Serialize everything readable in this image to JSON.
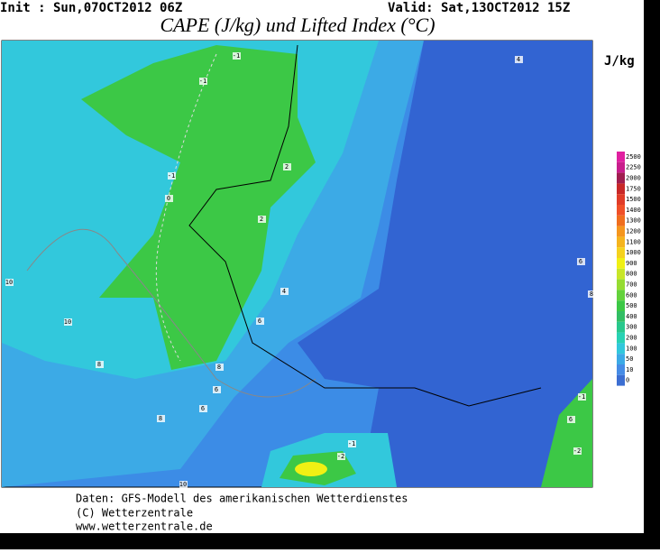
{
  "header": {
    "init": "Init : Sun,07OCT2012 06Z",
    "valid": "Valid: Sat,13OCT2012 15Z",
    "title": "CAPE (J/kg) und Lifted Index (°C)"
  },
  "colorbar": {
    "unit": "J/kg",
    "levels": [
      2500,
      2250,
      2000,
      1750,
      1500,
      1400,
      1300,
      1200,
      1100,
      1000,
      900,
      800,
      700,
      600,
      500,
      400,
      300,
      200,
      100,
      50,
      10,
      0
    ],
    "colors": [
      "#e020a0",
      "#c81e8c",
      "#a01e50",
      "#c82828",
      "#e03c28",
      "#f05028",
      "#f06e1e",
      "#f5961e",
      "#f5b41e",
      "#f5d21e",
      "#f0f014",
      "#c8e628",
      "#96dc32",
      "#64d23c",
      "#3cc846",
      "#32be64",
      "#28c88c",
      "#28d2b4",
      "#32c8dc",
      "#3caae6",
      "#468ce6",
      "#3c6ed2"
    ]
  },
  "map": {
    "contour_labels": [
      "-1",
      "-1",
      "-1",
      "0",
      "2",
      "2",
      "4",
      "6",
      "8",
      "10",
      "10",
      "10",
      "8",
      "8",
      "6",
      "6",
      "4",
      "6",
      "8",
      "-1",
      "-2",
      "-1",
      "-2",
      "6"
    ]
  },
  "footer": {
    "source": "Daten: GFS-Modell des amerikanischen Wetterdienstes",
    "copyright": "(C) Wetterzentrale",
    "url": "www.wetterzentrale.de"
  }
}
